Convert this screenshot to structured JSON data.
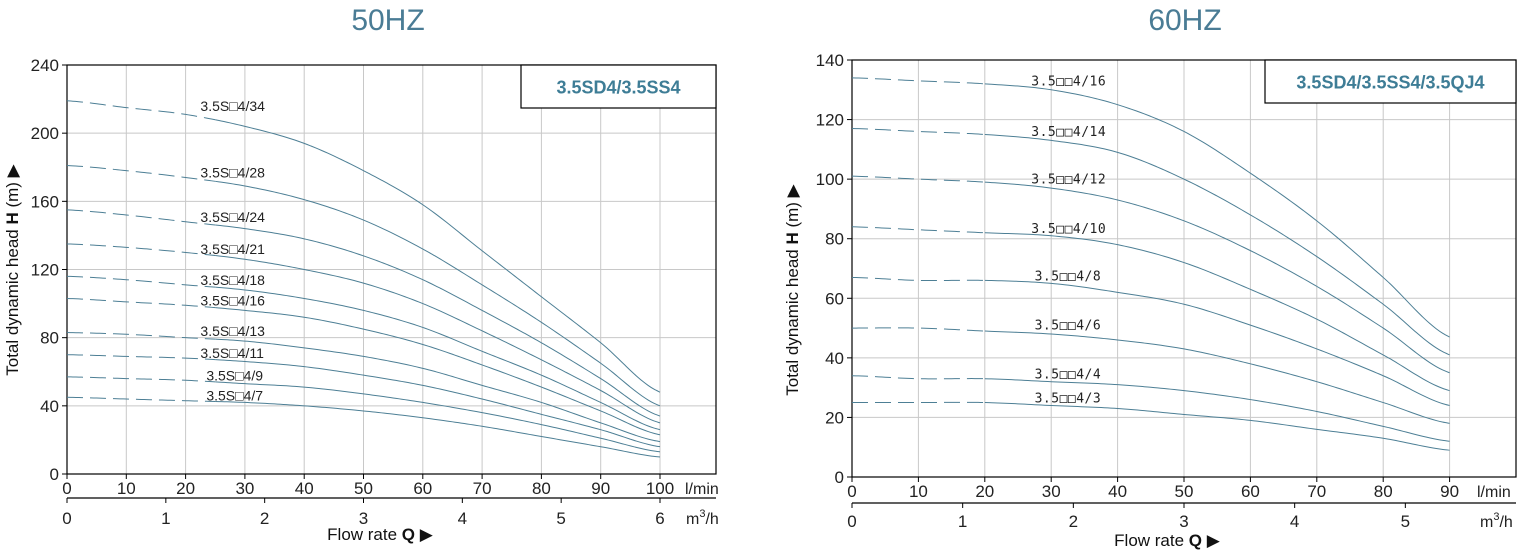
{
  "colors": {
    "curve": "#4d7f95",
    "grid": "#c8c8c8",
    "title": "#4a7c95",
    "axis": "#000000"
  },
  "chart_data": [
    {
      "type": "line",
      "title": "50HZ",
      "model": "3.5SD4/3.5SS4",
      "ylabel_pre": "Total dynamic head ",
      "ylabel_bold": "H",
      "ylabel_post": " (m) ▶",
      "xlabel_pre": "Flow rate ",
      "xlabel_bold": "Q",
      "xlabel_post": " ▶",
      "x_unit": "l/min",
      "x2_unit_base": "m",
      "x2_unit_sup": "3",
      "x2_unit_post": "/h",
      "xlim": [
        0,
        100
      ],
      "ylim": [
        0,
        240
      ],
      "xticks": [
        0,
        10,
        20,
        30,
        40,
        50,
        60,
        70,
        80,
        90,
        100
      ],
      "yticks": [
        0,
        40,
        80,
        120,
        160,
        200,
        240
      ],
      "x2ticks": [
        0,
        1,
        2,
        3,
        4,
        5,
        6
      ],
      "x2_scale": 16.6667,
      "dash_end": 25,
      "grid": true,
      "series": [
        {
          "name": "3.5S□4/34",
          "label_x": 22.5,
          "label_y": 213,
          "x": [
            0,
            10,
            20,
            30,
            40,
            50,
            60,
            70,
            80,
            90,
            100
          ],
          "values": [
            219,
            215,
            211,
            204,
            194,
            178,
            158,
            131,
            104,
            77,
            48
          ]
        },
        {
          "name": "3.5S□4/28",
          "label_x": 22.5,
          "label_y": 174,
          "x": [
            0,
            10,
            20,
            30,
            40,
            50,
            60,
            70,
            80,
            90,
            100
          ],
          "values": [
            181,
            178,
            174,
            169,
            161,
            149,
            132,
            111,
            89,
            65,
            40
          ]
        },
        {
          "name": "3.5S□4/24",
          "label_x": 22.5,
          "label_y": 148,
          "x": [
            0,
            10,
            20,
            30,
            40,
            50,
            60,
            70,
            80,
            90,
            100
          ],
          "values": [
            155,
            152,
            148,
            144,
            138,
            128,
            114,
            96,
            77,
            56,
            34
          ]
        },
        {
          "name": "3.5S□4/21",
          "label_x": 22.5,
          "label_y": 129,
          "x": [
            0,
            10,
            20,
            30,
            40,
            50,
            60,
            70,
            80,
            90,
            100
          ],
          "values": [
            135,
            133,
            130,
            126,
            120,
            112,
            100,
            84,
            67,
            49,
            30
          ]
        },
        {
          "name": "3.5S□4/18",
          "label_x": 22.5,
          "label_y": 111,
          "x": [
            0,
            10,
            20,
            30,
            40,
            50,
            60,
            70,
            80,
            90,
            100
          ],
          "values": [
            116,
            114,
            111,
            108,
            103,
            96,
            86,
            72,
            58,
            42,
            26
          ]
        },
        {
          "name": "3.5S□4/16",
          "label_x": 22.5,
          "label_y": 99,
          "x": [
            0,
            10,
            20,
            30,
            40,
            50,
            60,
            70,
            80,
            90,
            100
          ],
          "values": [
            103,
            101,
            99,
            96,
            92,
            85,
            76,
            64,
            51,
            37,
            23
          ]
        },
        {
          "name": "3.5S□4/13",
          "label_x": 22.5,
          "label_y": 81,
          "x": [
            0,
            10,
            20,
            30,
            40,
            50,
            60,
            70,
            80,
            90,
            100
          ],
          "values": [
            83,
            82,
            80,
            78,
            74,
            69,
            62,
            52,
            42,
            30,
            19
          ]
        },
        {
          "name": "3.5S□4/11",
          "label_x": 22.5,
          "label_y": 68,
          "x": [
            0,
            10,
            20,
            30,
            40,
            50,
            60,
            70,
            80,
            90,
            100
          ],
          "values": [
            70,
            69,
            68,
            66,
            63,
            58,
            52,
            44,
            35,
            26,
            16
          ]
        },
        {
          "name": "3.5S□4/9",
          "label_x": 23.5,
          "label_y": 55,
          "x": [
            0,
            10,
            20,
            30,
            40,
            50,
            60,
            70,
            80,
            90,
            100
          ],
          "values": [
            57,
            56,
            55,
            53,
            51,
            47,
            42,
            36,
            29,
            21,
            13
          ]
        },
        {
          "name": "3.5S□4/7",
          "label_x": 23.5,
          "label_y": 43,
          "x": [
            0,
            10,
            20,
            30,
            40,
            50,
            60,
            70,
            80,
            90,
            100
          ],
          "values": [
            45,
            44,
            43,
            42,
            40,
            37,
            33,
            28,
            22,
            16,
            10
          ]
        }
      ]
    },
    {
      "type": "line",
      "title": "60HZ",
      "model": "3.5SD4/3.5SS4/3.5QJ4",
      "ylabel_pre": "Total dynamic head ",
      "ylabel_bold": "H",
      "ylabel_post": " (m) ▶",
      "xlabel_pre": "Flow rate ",
      "xlabel_bold": "Q",
      "xlabel_post": " ▶",
      "x_unit": "l/min",
      "x2_unit_base": "m",
      "x2_unit_sup": "3",
      "x2_unit_post": "/h",
      "xlim": [
        0,
        100
      ],
      "ylim": [
        0,
        140
      ],
      "xticks": [
        0,
        10,
        20,
        30,
        40,
        50,
        60,
        70,
        80,
        90
      ],
      "yticks": [
        0,
        20,
        40,
        60,
        80,
        100,
        120,
        140
      ],
      "x2ticks": [
        0,
        1,
        2,
        3,
        4,
        5
      ],
      "x2_scale": 16.6667,
      "dash_end": 20,
      "grid": true,
      "series": [
        {
          "name": "3.5□□4/16",
          "label_x": 27,
          "label_y": 131.5,
          "x": [
            0,
            10,
            20,
            30,
            40,
            50,
            60,
            70,
            80,
            90
          ],
          "values": [
            134,
            133,
            132,
            130,
            125,
            116,
            102,
            86,
            67,
            47
          ]
        },
        {
          "name": "3.5□□4/14",
          "label_x": 27,
          "label_y": 114.5,
          "x": [
            0,
            10,
            20,
            30,
            40,
            50,
            60,
            70,
            80,
            90
          ],
          "values": [
            117,
            116,
            115,
            113,
            109,
            100,
            88,
            74,
            58,
            41
          ]
        },
        {
          "name": "3.5□□4/12",
          "label_x": 27,
          "label_y": 98.5,
          "x": [
            0,
            10,
            20,
            30,
            40,
            50,
            60,
            70,
            80,
            90
          ],
          "values": [
            101,
            100,
            99,
            97,
            93,
            86,
            76,
            64,
            50,
            35
          ]
        },
        {
          "name": "3.5□□4/10",
          "label_x": 27,
          "label_y": 82,
          "x": [
            0,
            10,
            20,
            30,
            40,
            50,
            60,
            70,
            80,
            90
          ],
          "values": [
            84,
            83,
            82,
            81,
            78,
            72,
            63,
            53,
            41,
            29
          ]
        },
        {
          "name": "3.5□□4/8",
          "label_x": 27.5,
          "label_y": 66,
          "x": [
            0,
            10,
            20,
            30,
            40,
            50,
            60,
            70,
            80,
            90
          ],
          "values": [
            67,
            66,
            66,
            65,
            62,
            58,
            51,
            43,
            34,
            24
          ]
        },
        {
          "name": "3.5□□4/6",
          "label_x": 27.5,
          "label_y": 49.5,
          "x": [
            0,
            10,
            20,
            30,
            40,
            50,
            60,
            70,
            80,
            90
          ],
          "values": [
            50,
            50,
            49,
            48,
            46,
            43,
            38,
            32,
            25,
            18
          ]
        },
        {
          "name": "3.5□□4/4",
          "label_x": 27.5,
          "label_y": 33,
          "x": [
            0,
            10,
            20,
            30,
            40,
            50,
            60,
            70,
            80,
            90
          ],
          "values": [
            34,
            33,
            33,
            32,
            31,
            29,
            26,
            22,
            17,
            12
          ]
        },
        {
          "name": "3.5□□4/3",
          "label_x": 27.5,
          "label_y": 25,
          "x": [
            0,
            10,
            20,
            30,
            40,
            50,
            60,
            70,
            80,
            90
          ],
          "values": [
            25,
            25,
            25,
            24,
            23,
            21,
            19,
            16,
            13,
            9
          ]
        }
      ]
    }
  ]
}
